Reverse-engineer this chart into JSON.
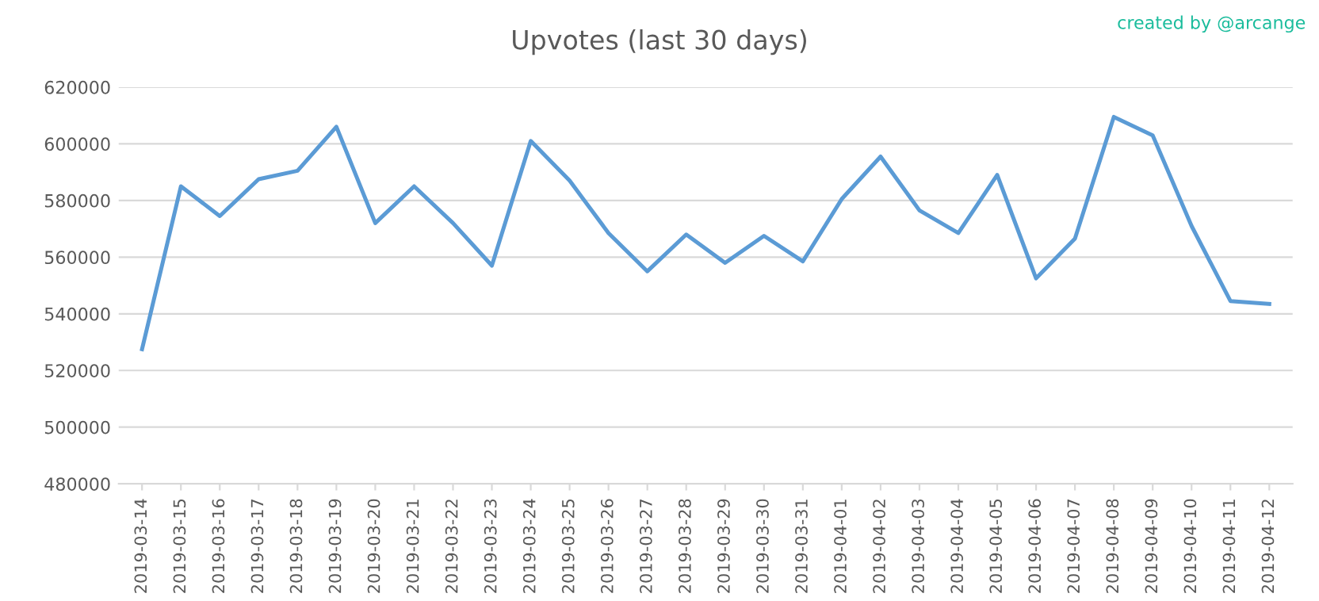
{
  "chart_data": {
    "type": "line",
    "title": "Upvotes (last 30 days)",
    "annotations": [
      "created by @arcange"
    ],
    "categories": [
      "2019-03-14",
      "2019-03-15",
      "2019-03-16",
      "2019-03-17",
      "2019-03-18",
      "2019-03-19",
      "2019-03-20",
      "2019-03-21",
      "2019-03-22",
      "2019-03-23",
      "2019-03-24",
      "2019-03-25",
      "2019-03-26",
      "2019-03-27",
      "2019-03-28",
      "2019-03-29",
      "2019-03-30",
      "2019-03-31",
      "2019-04-01",
      "2019-04-02",
      "2019-04-03",
      "2019-04-04",
      "2019-04-05",
      "2019-04-06",
      "2019-04-07",
      "2019-04-08",
      "2019-04-09",
      "2019-04-10",
      "2019-04-11",
      "2019-04-12"
    ],
    "series": [
      {
        "color": "#5b9bd5",
        "values": [
          527500,
          585000,
          574500,
          587500,
          590500,
          606000,
          572000,
          585000,
          572000,
          557000,
          601000,
          587000,
          568500,
          555000,
          568000,
          558000,
          567500,
          558500,
          580500,
          595500,
          576500,
          568500,
          589000,
          552500,
          566500,
          609500,
          603000,
          571000,
          544500,
          543500
        ]
      }
    ],
    "ylim": [
      480000,
      620000
    ],
    "yticks": [
      480000,
      500000,
      520000,
      540000,
      560000,
      580000,
      600000,
      620000
    ],
    "grid": "y",
    "legend": false,
    "marker": "none",
    "line_style": "solid"
  }
}
